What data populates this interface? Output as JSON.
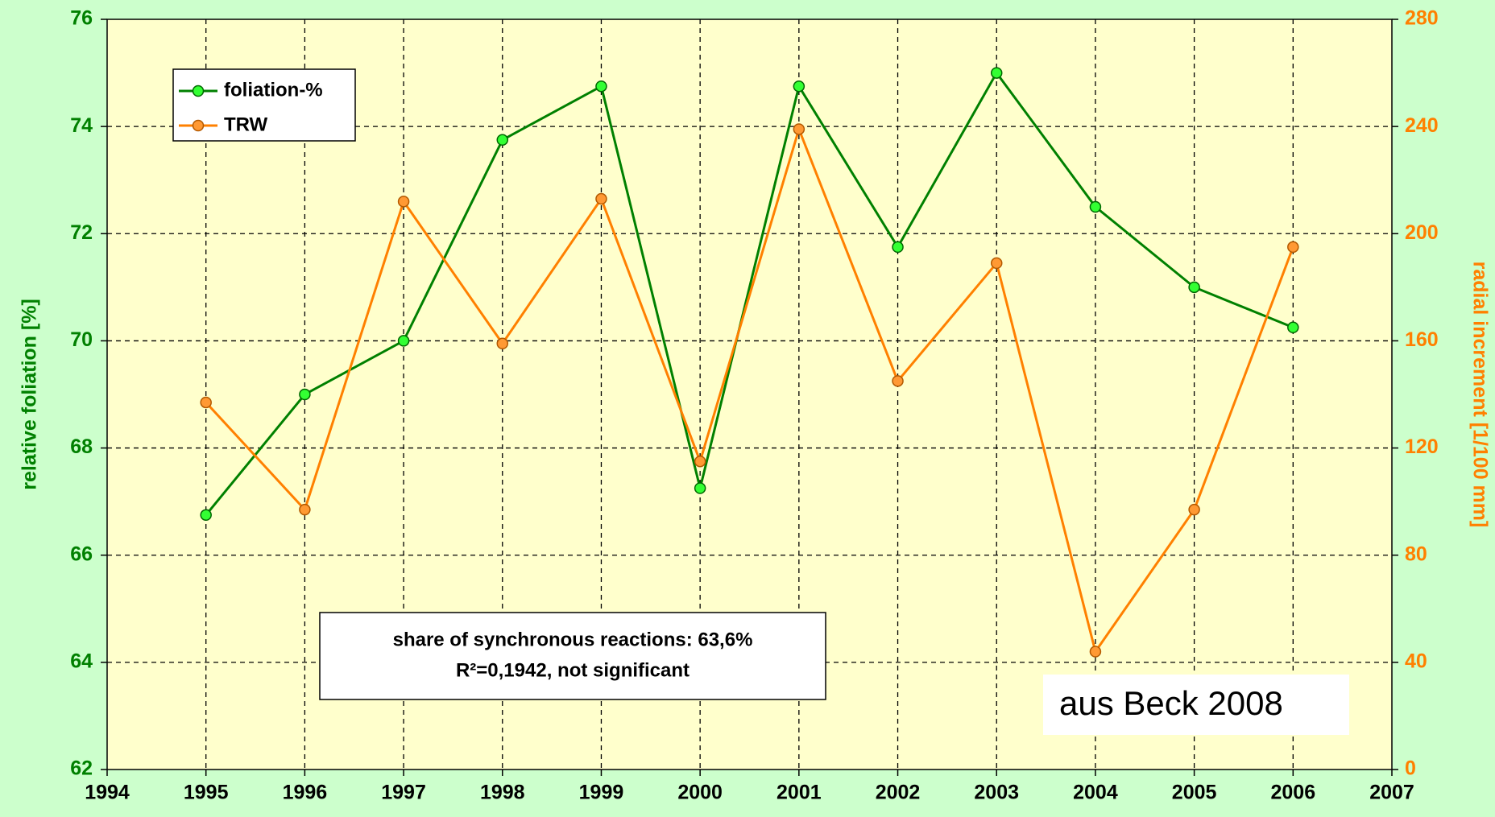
{
  "chart_data": {
    "type": "line",
    "x": [
      1995,
      1996,
      1997,
      1998,
      1999,
      2000,
      2001,
      2002,
      2003,
      2004,
      2005,
      2006
    ],
    "series": [
      {
        "name": "foliation-%",
        "color": "#008000",
        "marker_color": "#33ff33",
        "values": [
          66.75,
          69,
          70,
          73.75,
          74.75,
          67.25,
          74.75,
          71.75,
          75,
          72.5,
          71,
          70.25
        ]
      },
      {
        "name": "TRW",
        "color": "#ff8000",
        "marker_color": "#ff9933",
        "axis": "y2",
        "values": [
          137,
          97,
          212,
          159,
          213,
          115,
          239,
          145,
          189,
          44,
          97,
          195
        ]
      }
    ],
    "xlim": [
      1994,
      2007
    ],
    "xticks": [
      1994,
      1995,
      1996,
      1997,
      1998,
      1999,
      2000,
      2001,
      2002,
      2003,
      2004,
      2005,
      2006,
      2007
    ],
    "ylim": [
      62,
      76
    ],
    "yticks": [
      62,
      64,
      66,
      68,
      70,
      72,
      74,
      76
    ],
    "y2lim": [
      0,
      280
    ],
    "y2ticks": [
      0,
      40,
      80,
      120,
      160,
      200,
      240,
      280
    ],
    "ylabel": "relative foliation [%]",
    "y2label": "radial increment [1/100 mm]",
    "annotation": [
      "share of synchronous reactions: 63,6%",
      "R²=0,1942, not significant"
    ],
    "source": "aus Beck 2008",
    "grid": true,
    "legend": "upper left"
  }
}
